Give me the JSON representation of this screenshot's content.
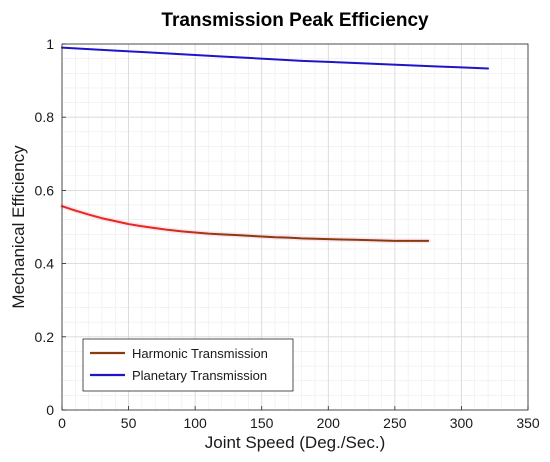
{
  "chart_data": {
    "type": "line",
    "title": "Transmission Peak Efficiency",
    "xlabel": "Joint Speed (Deg./Sec.)",
    "ylabel": "Mechanical Efficiency",
    "xlim": [
      0,
      350
    ],
    "ylim": [
      0,
      1
    ],
    "x_ticks": [
      0,
      50,
      100,
      150,
      200,
      250,
      300,
      350
    ],
    "y_ticks": [
      0,
      0.2,
      0.4,
      0.6,
      0.8,
      1
    ],
    "y_tick_labels": [
      "0",
      "0.2",
      "0.4",
      "0.6",
      "0.8",
      "1"
    ],
    "grid": true,
    "minor_grid": true,
    "legend_location": "bottom-left",
    "series": [
      {
        "name": "Harmonic Transmission",
        "color": "#8B3A10",
        "legend_color": "#8B3A10",
        "gradient_start_color": "#E8281E",
        "x": [
          0,
          10,
          20,
          30,
          40,
          50,
          60,
          70,
          80,
          90,
          100,
          110,
          120,
          130,
          140,
          150,
          160,
          170,
          180,
          190,
          200,
          210,
          220,
          230,
          240,
          250,
          260,
          270,
          275
        ],
        "y": [
          0.557,
          0.545,
          0.534,
          0.524,
          0.516,
          0.508,
          0.502,
          0.497,
          0.492,
          0.488,
          0.485,
          0.482,
          0.48,
          0.478,
          0.476,
          0.474,
          0.472,
          0.471,
          0.469,
          0.468,
          0.467,
          0.466,
          0.465,
          0.464,
          0.463,
          0.462,
          0.462,
          0.462,
          0.462
        ]
      },
      {
        "name": "Planetary Transmission",
        "color": "#1E14C8",
        "legend_color": "#1E14C8",
        "x": [
          0,
          20,
          40,
          60,
          80,
          100,
          120,
          140,
          160,
          180,
          200,
          220,
          240,
          260,
          280,
          300,
          320
        ],
        "y": [
          0.99,
          0.986,
          0.982,
          0.978,
          0.974,
          0.97,
          0.966,
          0.962,
          0.958,
          0.954,
          0.951,
          0.948,
          0.945,
          0.942,
          0.939,
          0.936,
          0.933
        ]
      }
    ]
  }
}
